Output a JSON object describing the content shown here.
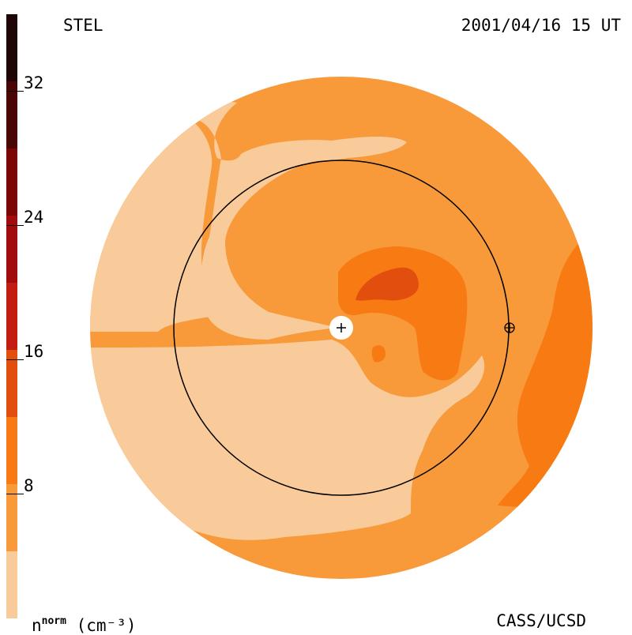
{
  "header": {
    "source": "STEL",
    "timestamp": "2001/04/16 15 UT"
  },
  "footer": {
    "unit_base": "n",
    "unit_sup": "norm",
    "unit_rest": "(cm⁻³)",
    "credit": "CASS/UCSD"
  },
  "colorbar": {
    "levels": [
      {
        "color": "#f9cb9b"
      },
      {
        "color": "#f89a3a"
      },
      {
        "color": "#f77a12"
      },
      {
        "color": "#e24e0e"
      },
      {
        "color": "#c21d10"
      },
      {
        "color": "#a30c0c"
      },
      {
        "color": "#7c0606"
      },
      {
        "color": "#4a0505"
      },
      {
        "color": "#1f0606"
      }
    ],
    "ticks": [
      {
        "value": 8,
        "label": "8"
      },
      {
        "value": 16,
        "label": "16"
      },
      {
        "value": 24,
        "label": "24"
      },
      {
        "value": 32,
        "label": "32"
      }
    ]
  },
  "colors": {
    "light": "#f9cb9b",
    "medium": "#f89a3a",
    "orange": "#f77a12",
    "dark": "#e24e0e"
  }
}
